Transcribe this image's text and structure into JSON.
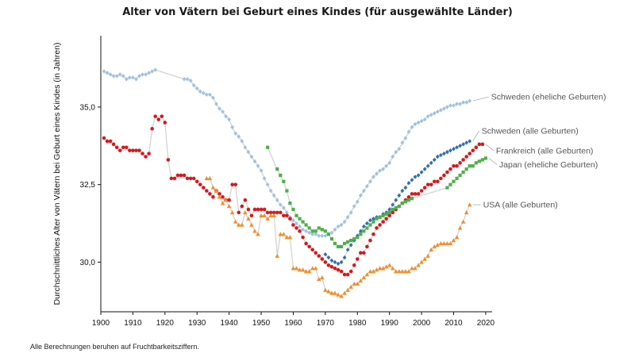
{
  "title": "Alter von Vätern bei Geburt eines Kindes (für ausgewählte Länder)",
  "footnote": "Alle Berechnungen beruhen auf Fruchtbarkeitsziffern.",
  "chart_data": {
    "type": "scatter",
    "title": "Alter von Vätern bei Geburt eines Kindes (für ausgewählte Länder)",
    "xlabel": "",
    "ylabel": "Durchschnittliches Alter von Vätern bei Geburt eines Kindes (in Jahren)",
    "xlim": [
      1900,
      2022
    ],
    "ylim": [
      28.4,
      37.3
    ],
    "xticks": [
      1900,
      1910,
      1920,
      1930,
      1940,
      1950,
      1960,
      1970,
      1980,
      1990,
      2000,
      2010,
      2020
    ],
    "xtick_labels": [
      "1900",
      "1910",
      "1920",
      "1930",
      "1940",
      "1950",
      "1960",
      "1970",
      "1980",
      "1990",
      "2000",
      "2010",
      "2020"
    ],
    "yticks": [
      30.0,
      32.5,
      35.0
    ],
    "ytick_labels": [
      "30,0",
      "32,5",
      "35,0"
    ],
    "grid": false,
    "legend": "direct labels at line ends",
    "series": [
      {
        "name": "Schweden (eheliche Geburten)",
        "color": "#9fc2e0",
        "marker": "diamond",
        "x": [
          1901,
          1902,
          1903,
          1904,
          1905,
          1906,
          1907,
          1908,
          1909,
          1910,
          1911,
          1912,
          1913,
          1914,
          1915,
          1916,
          1917,
          1926,
          1927,
          1928,
          1929,
          1930,
          1931,
          1932,
          1933,
          1934,
          1935,
          1936,
          1937,
          1938,
          1939,
          1940,
          1941,
          1942,
          1943,
          1944,
          1945,
          1946,
          1947,
          1948,
          1949,
          1950,
          1951,
          1952,
          1953,
          1954,
          1955,
          1956,
          1957,
          1958,
          1959,
          1960,
          1961,
          1962,
          1963,
          1964,
          1965,
          1966,
          1967,
          1968,
          1969,
          1970,
          1971,
          1972,
          1973,
          1974,
          1975,
          1976,
          1977,
          1978,
          1979,
          1980,
          1981,
          1982,
          1983,
          1984,
          1985,
          1986,
          1987,
          1988,
          1989,
          1990,
          1991,
          1992,
          1993,
          1994,
          1995,
          1996,
          1997,
          1998,
          1999,
          2000,
          2001,
          2002,
          2003,
          2004,
          2005,
          2006,
          2007,
          2008,
          2009,
          2010,
          2011,
          2012,
          2013,
          2014,
          2015
        ],
        "y": [
          36.15,
          36.1,
          36.05,
          36.0,
          36.0,
          36.05,
          36.0,
          35.9,
          35.95,
          35.95,
          35.9,
          36.0,
          36.05,
          36.05,
          36.1,
          36.15,
          36.2,
          35.9,
          35.9,
          35.85,
          35.7,
          35.6,
          35.5,
          35.45,
          35.4,
          35.4,
          35.3,
          35.1,
          34.95,
          34.85,
          34.7,
          34.6,
          34.35,
          34.15,
          34.05,
          33.9,
          33.7,
          33.55,
          33.4,
          33.25,
          33.1,
          32.95,
          32.7,
          32.5,
          32.3,
          32.15,
          32.0,
          31.85,
          31.75,
          31.6,
          31.45,
          31.35,
          31.25,
          31.15,
          31.05,
          31.0,
          30.95,
          30.9,
          30.9,
          30.85,
          30.85,
          30.85,
          30.9,
          30.95,
          31.05,
          31.15,
          31.2,
          31.3,
          31.45,
          31.6,
          31.8,
          31.95,
          32.15,
          32.3,
          32.45,
          32.6,
          32.75,
          32.85,
          32.95,
          33.0,
          33.1,
          33.2,
          33.4,
          33.55,
          33.65,
          33.85,
          34.0,
          34.2,
          34.35,
          34.45,
          34.5,
          34.55,
          34.6,
          34.7,
          34.75,
          34.8,
          34.85,
          34.9,
          34.95,
          35.0,
          35.05,
          35.05,
          35.1,
          35.1,
          35.15,
          35.15,
          35.2
        ]
      },
      {
        "name": "Schweden (alle Geburten)",
        "color": "#2e6fb0",
        "marker": "diamond",
        "x": [
          1970,
          1971,
          1972,
          1973,
          1974,
          1975,
          1976,
          1977,
          1978,
          1979,
          1980,
          1981,
          1982,
          1983,
          1984,
          1985,
          1986,
          1987,
          1988,
          1989,
          1990,
          1991,
          1992,
          1993,
          1994,
          1995,
          1996,
          1997,
          1998,
          1999,
          2000,
          2001,
          2002,
          2003,
          2004,
          2005,
          2006,
          2007,
          2008,
          2009,
          2010,
          2011,
          2012,
          2013,
          2014,
          2015
        ],
        "y": [
          30.25,
          30.15,
          30.05,
          30.0,
          29.95,
          30.0,
          30.15,
          30.4,
          30.55,
          30.7,
          30.85,
          31.0,
          31.15,
          31.25,
          31.35,
          31.4,
          31.45,
          31.45,
          31.55,
          31.6,
          31.7,
          31.85,
          32.0,
          32.15,
          32.3,
          32.4,
          32.55,
          32.65,
          32.75,
          32.8,
          32.9,
          33.0,
          33.1,
          33.2,
          33.3,
          33.4,
          33.45,
          33.5,
          33.55,
          33.6,
          33.65,
          33.7,
          33.75,
          33.8,
          33.85,
          33.9
        ]
      },
      {
        "name": "Frankreich (alle Geburten)",
        "color": "#d7191c",
        "marker": "circle",
        "x": [
          1901,
          1902,
          1903,
          1904,
          1905,
          1906,
          1907,
          1908,
          1909,
          1910,
          1911,
          1912,
          1913,
          1914,
          1915,
          1916,
          1917,
          1918,
          1919,
          1920,
          1921,
          1922,
          1923,
          1924,
          1925,
          1926,
          1927,
          1928,
          1929,
          1930,
          1931,
          1932,
          1933,
          1934,
          1935,
          1936,
          1937,
          1938,
          1939,
          1940,
          1941,
          1942,
          1943,
          1944,
          1945,
          1946,
          1947,
          1948,
          1949,
          1950,
          1951,
          1952,
          1953,
          1954,
          1955,
          1956,
          1957,
          1958,
          1959,
          1960,
          1961,
          1962,
          1963,
          1964,
          1965,
          1966,
          1967,
          1968,
          1969,
          1970,
          1971,
          1972,
          1973,
          1974,
          1975,
          1976,
          1977,
          1978,
          1979,
          1980,
          1981,
          1982,
          1983,
          1984,
          1985,
          1986,
          1987,
          1988,
          1989,
          1990,
          1991,
          1992,
          1993,
          1994,
          1995,
          1996,
          1997,
          1998,
          1999,
          2000,
          2001,
          2002,
          2003,
          2004,
          2005,
          2006,
          2007,
          2008,
          2009,
          2010,
          2011,
          2012,
          2013,
          2014,
          2015,
          2016,
          2017,
          2018,
          2019
        ],
        "y": [
          34.0,
          33.9,
          33.9,
          33.8,
          33.7,
          33.6,
          33.7,
          33.7,
          33.6,
          33.6,
          33.6,
          33.6,
          33.5,
          33.4,
          33.5,
          34.3,
          34.7,
          34.6,
          34.7,
          34.5,
          33.3,
          32.7,
          32.7,
          32.8,
          32.8,
          32.8,
          32.7,
          32.7,
          32.7,
          32.6,
          32.5,
          32.4,
          32.3,
          32.2,
          32.1,
          32.3,
          32.2,
          32.1,
          32.0,
          32.0,
          32.5,
          32.5,
          31.6,
          31.8,
          32.0,
          31.7,
          31.5,
          31.7,
          31.7,
          31.7,
          31.7,
          31.6,
          31.6,
          31.6,
          31.6,
          31.6,
          31.5,
          31.5,
          31.4,
          31.2,
          31.1,
          31.0,
          30.8,
          30.6,
          30.5,
          30.4,
          30.3,
          30.2,
          30.1,
          30.0,
          29.9,
          29.85,
          29.8,
          29.75,
          29.7,
          29.6,
          29.6,
          29.7,
          29.9,
          30.1,
          30.3,
          30.3,
          30.5,
          30.7,
          30.9,
          31.1,
          31.2,
          31.3,
          31.4,
          31.5,
          31.6,
          31.7,
          31.8,
          31.9,
          32.0,
          32.1,
          32.2,
          32.2,
          32.2,
          32.3,
          32.4,
          32.5,
          32.5,
          32.6,
          32.6,
          32.7,
          32.8,
          32.9,
          33.0,
          33.1,
          33.1,
          33.2,
          33.3,
          33.4,
          33.5,
          33.6,
          33.7,
          33.8,
          33.8
        ]
      },
      {
        "name": "Japan (eheliche Geburten)",
        "color": "#4daf4a",
        "marker": "square",
        "x": [
          1952,
          1955,
          1956,
          1957,
          1958,
          1959,
          1960,
          1961,
          1962,
          1963,
          1964,
          1965,
          1966,
          1967,
          1968,
          1969,
          1970,
          1971,
          1972,
          1973,
          1974,
          1975,
          1976,
          1977,
          1978,
          1979,
          1980,
          1981,
          1982,
          1983,
          1984,
          1985,
          1986,
          1987,
          1988,
          1989,
          1990,
          1991,
          1992,
          1993,
          1994,
          1995,
          1996,
          1997,
          2008,
          2009,
          2010,
          2011,
          2012,
          2013,
          2014,
          2015,
          2016,
          2017,
          2018,
          2019,
          2020
        ],
        "y": [
          33.7,
          33.0,
          32.8,
          32.6,
          32.3,
          31.9,
          31.7,
          31.5,
          31.4,
          31.3,
          31.2,
          31.1,
          31.0,
          31.0,
          31.1,
          31.05,
          31.0,
          30.9,
          30.75,
          30.6,
          30.5,
          30.5,
          30.6,
          30.65,
          30.7,
          30.75,
          30.8,
          30.9,
          31.0,
          31.1,
          31.2,
          31.3,
          31.4,
          31.45,
          31.5,
          31.55,
          31.6,
          31.7,
          31.75,
          31.8,
          31.9,
          31.95,
          32.0,
          32.05,
          32.4,
          32.5,
          32.6,
          32.7,
          32.8,
          32.9,
          33.0,
          33.1,
          33.1,
          33.2,
          33.25,
          33.3,
          33.35
        ]
      },
      {
        "name": "USA (alle Geburten)",
        "color": "#f28e2b",
        "marker": "triangle",
        "x": [
          1933,
          1934,
          1935,
          1936,
          1937,
          1938,
          1939,
          1940,
          1941,
          1942,
          1943,
          1944,
          1945,
          1946,
          1947,
          1948,
          1949,
          1950,
          1951,
          1952,
          1953,
          1954,
          1955,
          1956,
          1957,
          1958,
          1959,
          1960,
          1961,
          1962,
          1963,
          1964,
          1965,
          1966,
          1967,
          1968,
          1969,
          1970,
          1971,
          1972,
          1973,
          1974,
          1975,
          1976,
          1977,
          1978,
          1979,
          1980,
          1981,
          1982,
          1983,
          1984,
          1985,
          1986,
          1987,
          1988,
          1989,
          1990,
          1991,
          1992,
          1993,
          1994,
          1995,
          1996,
          1997,
          1998,
          1999,
          2000,
          2001,
          2002,
          2003,
          2004,
          2005,
          2006,
          2007,
          2008,
          2009,
          2010,
          2011,
          2012,
          2013,
          2014,
          2015
        ],
        "y": [
          32.7,
          32.7,
          32.4,
          32.3,
          32.1,
          31.9,
          32.0,
          31.8,
          31.6,
          31.3,
          31.2,
          31.2,
          31.6,
          31.4,
          31.2,
          31.0,
          30.9,
          31.5,
          31.5,
          31.4,
          31.5,
          31.5,
          30.2,
          30.9,
          30.9,
          30.8,
          30.8,
          29.8,
          29.8,
          29.75,
          29.75,
          29.7,
          29.7,
          29.8,
          29.8,
          29.45,
          29.5,
          29.1,
          29.05,
          29.0,
          29.0,
          28.95,
          28.9,
          29.0,
          29.1,
          29.2,
          29.3,
          29.3,
          29.4,
          29.5,
          29.6,
          29.7,
          29.7,
          29.75,
          29.8,
          29.8,
          29.85,
          29.9,
          29.8,
          29.7,
          29.7,
          29.7,
          29.7,
          29.7,
          29.8,
          29.8,
          29.9,
          30.0,
          30.1,
          30.2,
          30.4,
          30.5,
          30.55,
          30.6,
          30.6,
          30.6,
          30.6,
          30.7,
          30.8,
          31.1,
          31.3,
          31.6,
          31.85
        ]
      }
    ],
    "labels": [
      {
        "series": 0,
        "text": "Schweden (eheliche Geburten)"
      },
      {
        "series": 1,
        "text": "Schweden (alle Geburten)"
      },
      {
        "series": 2,
        "text": "Frankreich (alle Geburten)"
      },
      {
        "series": 3,
        "text": "Japan (eheliche Geburten)"
      },
      {
        "series": 4,
        "text": "USA (alle Geburten)"
      }
    ]
  }
}
